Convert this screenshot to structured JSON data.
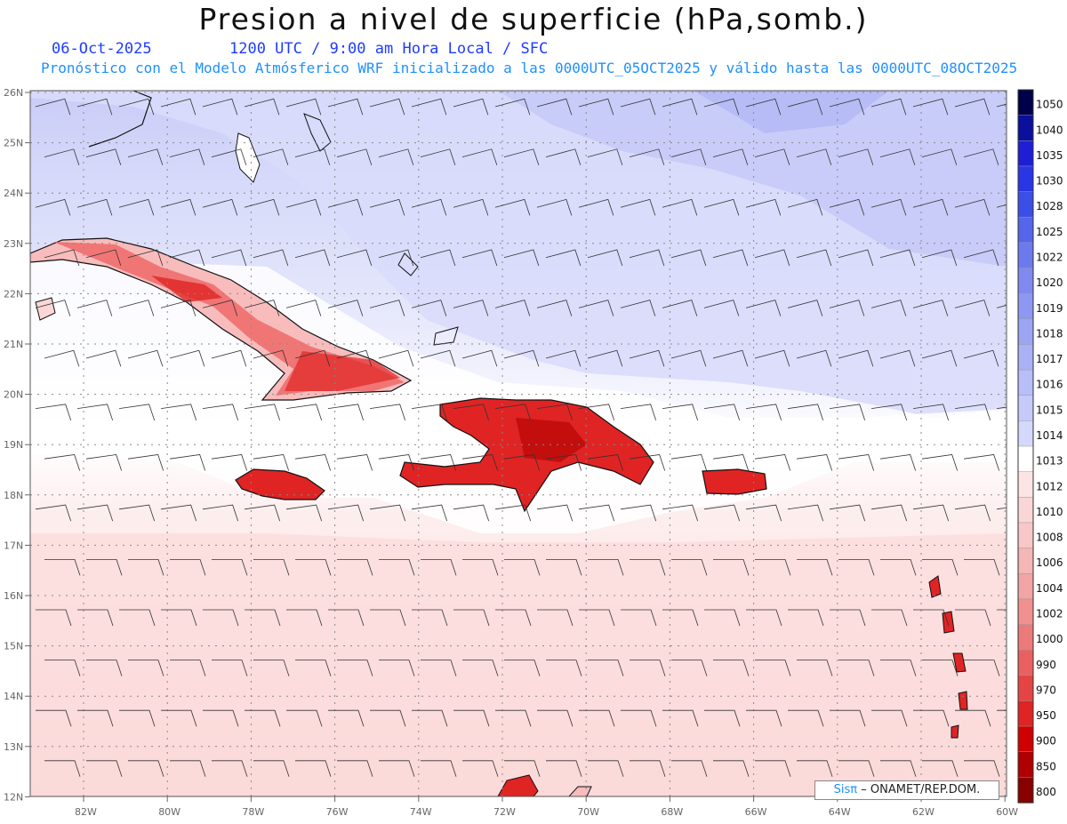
{
  "title": "Presion a nivel de superficie (hPa,somb.)",
  "date": "06-Oct-2025",
  "time_info": "1200 UTC / 9:00 am Hora Local / SFC",
  "model_info": "Pronóstico con el Modelo Atmósferico WRF inicializado a las 0000UTC_05OCT2025 y válido hasta las  0000UTC_08OCT2025",
  "lat_labels": [
    "26N",
    "25N",
    "24N",
    "23N",
    "22N",
    "21N",
    "20N",
    "19N",
    "18N",
    "17N",
    "16N",
    "15N",
    "14N",
    "13N",
    "12N"
  ],
  "lon_labels": [
    "82W",
    "80W",
    "78W",
    "76W",
    "74W",
    "72W",
    "70W",
    "68W",
    "66W",
    "64W",
    "62W",
    "60W"
  ],
  "colorbar": {
    "labels": [
      "1050",
      "1040",
      "1035",
      "1030",
      "1028",
      "1025",
      "1022",
      "1020",
      "1019",
      "1018",
      "1017",
      "1016",
      "1015",
      "1014",
      "1013",
      "1012",
      "1010",
      "1008",
      "1006",
      "1004",
      "1002",
      "1000",
      "990",
      "970",
      "950",
      "900",
      "850",
      "800"
    ],
    "colors": [
      "#00004a",
      "#0a0f9c",
      "#1e1fd4",
      "#2a35e6",
      "#3b4ee8",
      "#5566ec",
      "#6c7aee",
      "#8089f0",
      "#8e97f2",
      "#9ca4f4",
      "#aab1f6",
      "#b8bef8",
      "#c6cafa",
      "#d4d8fc",
      "#ffffff",
      "#fce4e4",
      "#fad6d6",
      "#f8c7c7",
      "#f5b6b6",
      "#f3a4a4",
      "#f09090",
      "#ed7a7a",
      "#ea6060",
      "#e64444",
      "#e02424",
      "#d00000",
      "#b00000",
      "#880000"
    ]
  },
  "credit": {
    "brand": "Sisπ",
    "text": "– ONAMET/REP.DOM."
  },
  "colors": {
    "high_pressure": "#c6cafa",
    "low_pressure": "#fad6d6",
    "land_low": "#e02424"
  }
}
